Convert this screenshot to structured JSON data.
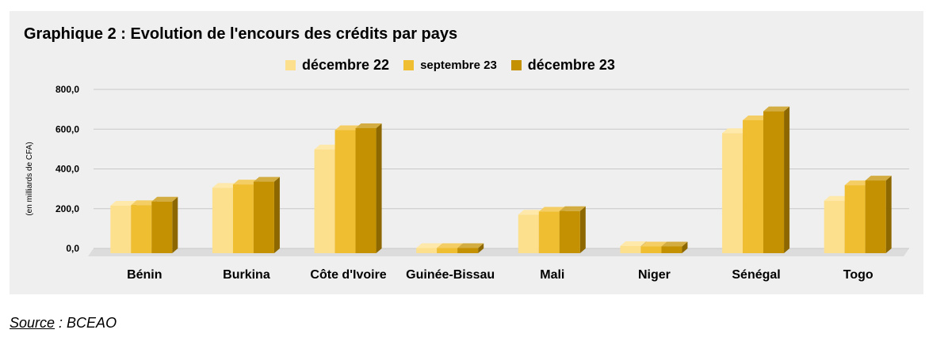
{
  "title": "Graphique 2 : Evolution de l'encours des crédits par pays",
  "source": {
    "label": "Source",
    "text": " : BCEAO"
  },
  "colors": {
    "panel": "#efefef",
    "gridline": "#c8c8c8",
    "floor": "#dcdcdc"
  },
  "chart_data": {
    "type": "bar",
    "title": "Graphique 2 : Evolution de l'encours des crédits par pays",
    "xlabel": "",
    "ylabel": "(en milliards de CFA)",
    "ylim": [
      0,
      800
    ],
    "yticks": [
      "0,0",
      "200,0",
      "400,0",
      "600,0",
      "800,0"
    ],
    "grid": true,
    "legend_position": "top-center",
    "categories": [
      "Bénin",
      "Burkina",
      "Côte d'Ivoire",
      "Guinée-Bissau",
      "Mali",
      "Niger",
      "Sénégal",
      "Togo"
    ],
    "series": [
      {
        "name": "décembre 22",
        "color": "#fde08e",
        "values": [
          215,
          305,
          498,
          2,
          170,
          12,
          580,
          240
        ]
      },
      {
        "name": "septembre 23",
        "color": "#f0be31",
        "values": [
          218,
          322,
          595,
          2,
          185,
          10,
          645,
          318
        ]
      },
      {
        "name": "décembre 23",
        "color": "#c49102",
        "values": [
          236,
          336,
          605,
          2,
          188,
          10,
          690,
          342
        ]
      }
    ]
  }
}
